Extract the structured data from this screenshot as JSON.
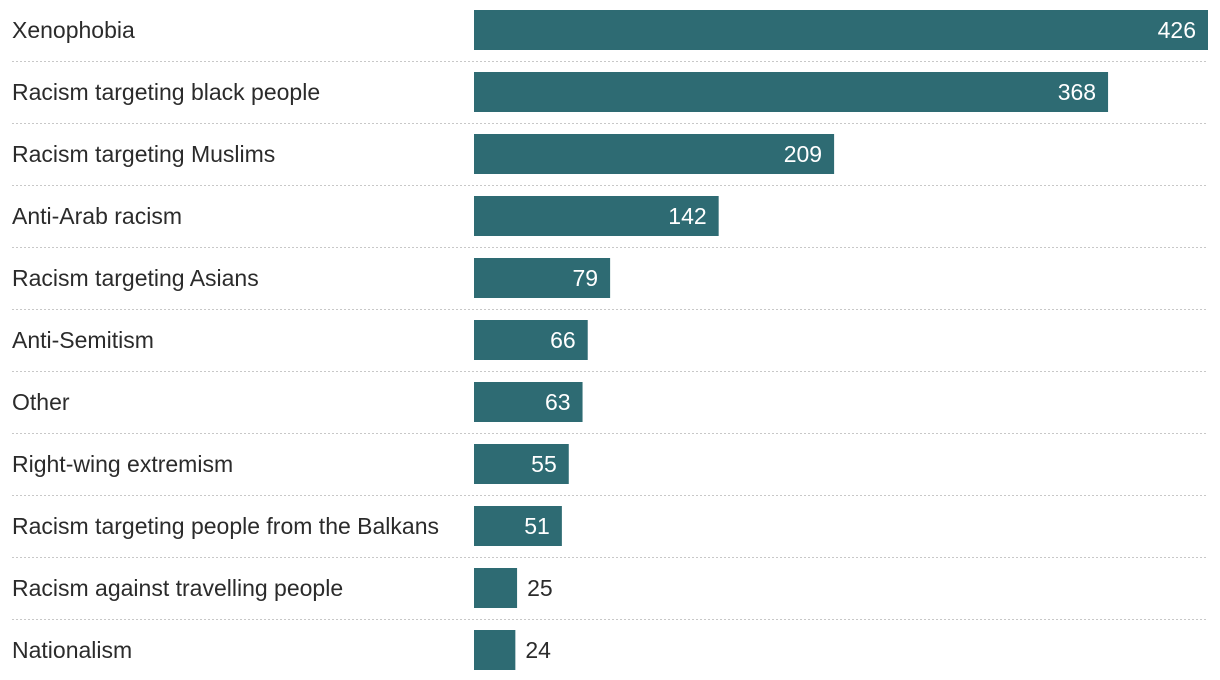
{
  "chart_data": {
    "type": "bar",
    "orientation": "horizontal",
    "categories": [
      "Xenophobia",
      "Racism targeting black people",
      "Racism targeting Muslims",
      "Anti-Arab racism",
      "Racism targeting Asians",
      "Anti-Semitism",
      "Other",
      "Right-wing extremism",
      "Racism targeting people from the Balkans",
      "Racism against travelling people",
      "Nationalism"
    ],
    "values": [
      426,
      368,
      209,
      142,
      79,
      66,
      63,
      55,
      51,
      25,
      24
    ],
    "xlim": [
      0,
      426
    ],
    "title": "",
    "xlabel": "",
    "ylabel": "",
    "grid": false,
    "row_separators": "dotted",
    "data_labels": true,
    "legend": false
  },
  "colors": {
    "bar": "#2e6b73",
    "label_inside": "#ffffff",
    "label_outside": "#2b2b2b",
    "text": "#2b2b2b",
    "separator": "#c8c8c8"
  }
}
